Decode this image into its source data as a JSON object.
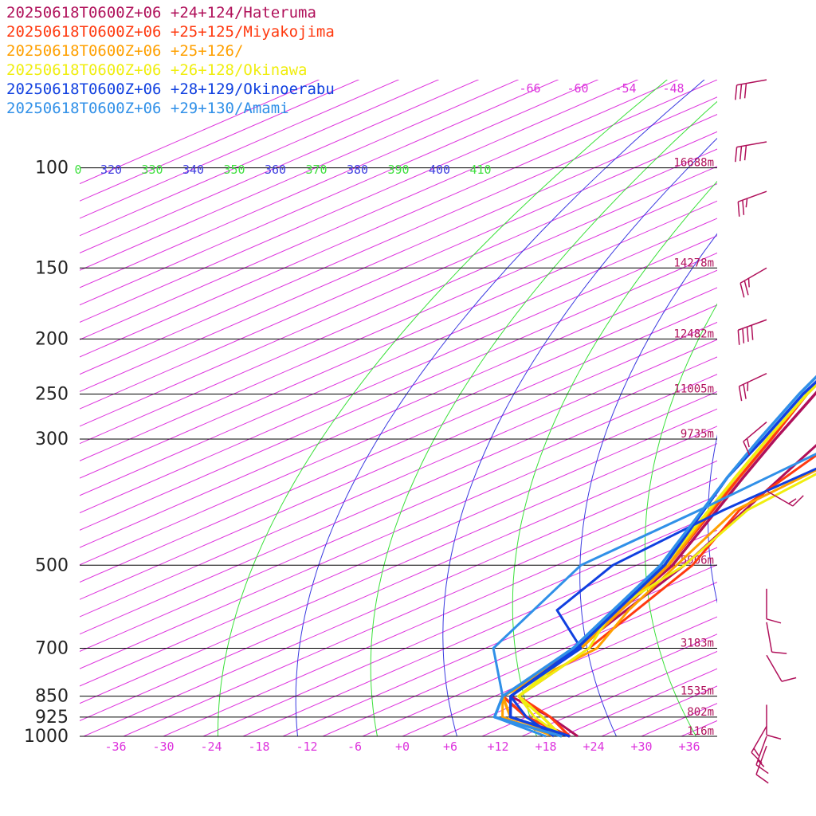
{
  "chart_data": {
    "type": "line",
    "legend": [
      {
        "label": "20250618T0600Z+06 +24+124/Hateruma",
        "color": "#b0105a"
      },
      {
        "label": "20250618T0600Z+06 +25+125/Miyakojima",
        "color": "#ff3a10"
      },
      {
        "label": "20250618T0600Z+06 +25+126/",
        "color": "#ffa000"
      },
      {
        "label": "20250618T0600Z+06 +26+128/Okinawa",
        "color": "#f0ee10"
      },
      {
        "label": "20250618T0600Z+06 +28+129/Okinoerabu",
        "color": "#1040e0"
      },
      {
        "label": "20250618T0600Z+06 +29+130/Amami",
        "color": "#3090e8"
      }
    ],
    "x_ticks": [
      "-36",
      "-30",
      "-24",
      "-18",
      "-12",
      "-6",
      "+0",
      "+6",
      "+12",
      "+18",
      "+24",
      "+30",
      "+36"
    ],
    "pressure_levels": [
      {
        "p": 100,
        "label": "100",
        "height": "16688m"
      },
      {
        "p": 150,
        "label": "150",
        "height": "14278m"
      },
      {
        "p": 200,
        "label": "200",
        "height": "12482m"
      },
      {
        "p": 250,
        "label": "250",
        "height": "11005m"
      },
      {
        "p": 300,
        "label": "300",
        "height": "9735m"
      },
      {
        "p": 500,
        "label": "500",
        "height": "5906m"
      },
      {
        "p": 700,
        "label": "700",
        "height": "3183m"
      },
      {
        "p": 850,
        "label": "850",
        "height": "1535m"
      },
      {
        "p": 925,
        "label": "925",
        "height": "802m"
      },
      {
        "p": 1000,
        "label": "1000",
        "height": "116m"
      }
    ],
    "theta_labels": [
      {
        "value": "0",
        "color": "#40e040"
      },
      {
        "value": "320",
        "color": "#4040e0"
      },
      {
        "value": "330",
        "color": "#40e040"
      },
      {
        "value": "340",
        "color": "#4040e0"
      },
      {
        "value": "350",
        "color": "#40e040"
      },
      {
        "value": "360",
        "color": "#4040e0"
      },
      {
        "value": "370",
        "color": "#40e040"
      },
      {
        "value": "380",
        "color": "#4040e0"
      },
      {
        "value": "390",
        "color": "#40e040"
      },
      {
        "value": "400",
        "color": "#4040e0"
      },
      {
        "value": "410",
        "color": "#40e040"
      }
    ],
    "isotherm_labels": [
      "-66",
      "-60",
      "-54",
      "-48"
    ],
    "colors": {
      "isotherm": "#dd33dd",
      "dry_adiabat_a": "#3a3ae0",
      "dry_adiabat_b": "#3ae03a",
      "pressure_line": "#000000",
      "wind_barb": "#b0105a"
    },
    "series": [
      {
        "name": "20250618T0600Z+06 +24+124/Hateruma",
        "color": "#b0105a",
        "temperature": [
          [
            -54.5,
            100
          ],
          [
            -58.5,
            150
          ],
          [
            -57,
            200
          ],
          [
            -47,
            250
          ],
          [
            -39,
            300
          ],
          [
            -32,
            350
          ],
          [
            -15.5,
            500
          ],
          [
            -3.5,
            700
          ],
          [
            1,
            850
          ],
          [
            10,
            925
          ],
          [
            21,
            1000
          ]
        ],
        "dewpoint": [
          [
            -33,
            300
          ],
          [
            -14,
            500
          ],
          [
            -3.5,
            700
          ],
          [
            2,
            850
          ],
          [
            13,
            925
          ],
          [
            22,
            1000
          ]
        ]
      },
      {
        "name": "20250618T0600Z+06 +25+125/Miyakojima",
        "color": "#ff3a10",
        "temperature": [
          [
            -55.5,
            100
          ],
          [
            -57.5,
            150
          ],
          [
            -57,
            200
          ],
          [
            -48,
            250
          ],
          [
            -39.5,
            300
          ],
          [
            -32.5,
            350
          ],
          [
            -16,
            500
          ],
          [
            -3.5,
            700
          ],
          [
            1,
            850
          ],
          [
            10,
            925
          ],
          [
            21,
            1000
          ]
        ],
        "dewpoint": [
          [
            -31,
            300
          ],
          [
            -23,
            400
          ],
          [
            -13,
            500
          ],
          [
            -2,
            700
          ],
          [
            3,
            850
          ],
          [
            13,
            925
          ],
          [
            21,
            1000
          ]
        ]
      },
      {
        "name": "20250618T0600Z+06 +25+126/",
        "color": "#ffa000",
        "temperature": [
          [
            -56,
            100
          ],
          [
            -58.5,
            150
          ],
          [
            -57,
            200
          ],
          [
            -48,
            250
          ],
          [
            -40,
            300
          ],
          [
            -33,
            350
          ],
          [
            -16,
            500
          ],
          [
            -3,
            700
          ],
          [
            1,
            850
          ],
          [
            8,
            925
          ],
          [
            20,
            1000
          ]
        ],
        "dewpoint": [
          [
            -26,
            300
          ],
          [
            -23.5,
            400
          ],
          [
            -15,
            500
          ],
          [
            -8,
            600
          ],
          [
            -1,
            700
          ],
          [
            1,
            850
          ],
          [
            7,
            925
          ],
          [
            19,
            1000
          ]
        ]
      },
      {
        "name": "20250618T0600Z+06 +26+128/Okinawa",
        "color": "#f0ee10",
        "temperature": [
          [
            -56.5,
            100
          ],
          [
            -58,
            150
          ],
          [
            -57,
            200
          ],
          [
            -48,
            250
          ],
          [
            -40,
            300
          ],
          [
            -33,
            350
          ],
          [
            -16.5,
            500
          ],
          [
            -3.5,
            700
          ],
          [
            3,
            850
          ],
          [
            12,
            925
          ],
          [
            20,
            1000
          ]
        ],
        "dewpoint": [
          [
            -25.5,
            300
          ],
          [
            -22,
            400
          ],
          [
            -14,
            500
          ],
          [
            -10,
            600
          ],
          [
            -2,
            700
          ],
          [
            3,
            850
          ],
          [
            11,
            925
          ],
          [
            20,
            1000
          ]
        ]
      },
      {
        "name": "20250618T0600Z+06 +28+129/Okinoerabu",
        "color": "#1040e0",
        "temperature": [
          [
            -57.5,
            100
          ],
          [
            -58,
            150
          ],
          [
            -57,
            200
          ],
          [
            -48.5,
            250
          ],
          [
            -40.5,
            300
          ],
          [
            -34,
            350
          ],
          [
            -16.5,
            500
          ],
          [
            -3.5,
            700
          ],
          [
            2,
            850
          ],
          [
            8,
            925
          ],
          [
            21,
            1000
          ]
        ],
        "dewpoint": [
          [
            -25.5,
            300
          ],
          [
            -25,
            400
          ],
          [
            -23,
            500
          ],
          [
            -17,
            600
          ],
          [
            -3,
            700
          ],
          [
            2,
            850
          ],
          [
            10,
            925
          ],
          [
            19,
            1000
          ]
        ]
      },
      {
        "name": "20250618T0600Z+06 +29+130/Amami",
        "color": "#3090e8",
        "temperature": [
          [
            -58,
            100
          ],
          [
            -58.5,
            150
          ],
          [
            -58,
            200
          ],
          [
            -49,
            250
          ],
          [
            -41,
            300
          ],
          [
            -34,
            350
          ],
          [
            -17,
            500
          ],
          [
            -4,
            700
          ],
          [
            1,
            850
          ],
          [
            6,
            925
          ],
          [
            20,
            1000
          ]
        ],
        "dewpoint": [
          [
            -30,
            300
          ],
          [
            -28,
            400
          ],
          [
            -27,
            500
          ],
          [
            -14,
            700
          ],
          [
            1,
            850
          ],
          [
            6,
            925
          ],
          [
            18,
            1000
          ]
        ]
      }
    ],
    "wind_barbs": [
      {
        "p": 70,
        "dir": 260,
        "speed_kt": 30
      },
      {
        "p": 90,
        "dir": 260,
        "speed_kt": 30
      },
      {
        "p": 110,
        "dir": 250,
        "speed_kt": 25
      },
      {
        "p": 150,
        "dir": 240,
        "speed_kt": 25
      },
      {
        "p": 185,
        "dir": 250,
        "speed_kt": 40
      },
      {
        "p": 230,
        "dir": 245,
        "speed_kt": 25
      },
      {
        "p": 280,
        "dir": 230,
        "speed_kt": 15
      },
      {
        "p": 370,
        "dir": 120,
        "speed_kt": 15
      },
      {
        "p": 550,
        "dir": 180,
        "speed_kt": 10
      },
      {
        "p": 630,
        "dir": 170,
        "speed_kt": 10
      },
      {
        "p": 720,
        "dir": 150,
        "speed_kt": 10
      },
      {
        "p": 880,
        "dir": 180,
        "speed_kt": 10
      },
      {
        "p": 960,
        "dir": 210,
        "speed_kt": 15
      },
      {
        "p": 1000,
        "dir": 200,
        "speed_kt": 15
      },
      {
        "p": 1040,
        "dir": 200,
        "speed_kt": 10
      }
    ]
  }
}
